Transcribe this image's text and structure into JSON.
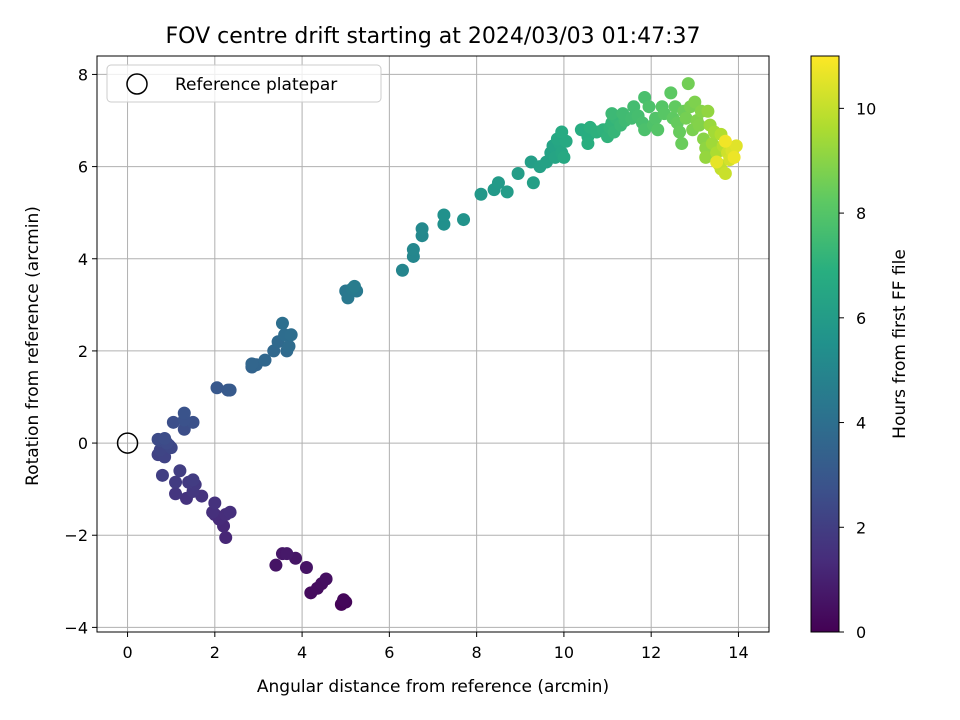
{
  "chart_data": {
    "type": "scatter",
    "title": "FOV centre drift starting at 2024/03/03 01:47:37",
    "xlabel": "Angular distance from reference (arcmin)",
    "ylabel": "Rotation from reference (arcmin)",
    "xlim": [
      -0.7,
      14.7
    ],
    "ylim": [
      -4.1,
      8.4
    ],
    "xticks": [
      0,
      2,
      4,
      6,
      8,
      10,
      12,
      14
    ],
    "yticks": [
      -4,
      -2,
      0,
      2,
      4,
      6,
      8
    ],
    "xtick_labels": [
      "0",
      "2",
      "4",
      "6",
      "8",
      "10",
      "12",
      "14"
    ],
    "ytick_labels": [
      "−4",
      "−2",
      "0",
      "2",
      "4",
      "6",
      "8"
    ],
    "grid": true,
    "legend": {
      "placement": "top-left",
      "entries": [
        "Reference platepar"
      ]
    },
    "reference_point": {
      "x": 0,
      "y": 0
    },
    "colorbar": {
      "label": "Hours from first FF file",
      "min": 0,
      "max": 11,
      "ticks": [
        0,
        2,
        4,
        6,
        8,
        10
      ],
      "tick_labels": [
        "0",
        "2",
        "4",
        "6",
        "8",
        "10"
      ],
      "colormap": "viridis"
    },
    "points": [
      [
        4.9,
        -3.5,
        0.1
      ],
      [
        5.0,
        -3.45,
        0.15
      ],
      [
        4.95,
        -3.4,
        0.2
      ],
      [
        4.2,
        -3.25,
        0.3
      ],
      [
        4.35,
        -3.15,
        0.35
      ],
      [
        4.45,
        -3.05,
        0.4
      ],
      [
        4.55,
        -2.95,
        0.45
      ],
      [
        4.1,
        -2.7,
        0.55
      ],
      [
        3.4,
        -2.65,
        0.6
      ],
      [
        3.85,
        -2.5,
        0.65
      ],
      [
        3.55,
        -2.4,
        0.7
      ],
      [
        3.65,
        -2.4,
        0.75
      ],
      [
        2.25,
        -2.05,
        1.2
      ],
      [
        2.2,
        -1.8,
        1.25
      ],
      [
        2.1,
        -1.65,
        1.3
      ],
      [
        2.0,
        -1.55,
        1.35
      ],
      [
        2.25,
        -1.55,
        1.4
      ],
      [
        2.35,
        -1.5,
        1.45
      ],
      [
        1.95,
        -1.5,
        1.5
      ],
      [
        2.0,
        -1.3,
        1.55
      ],
      [
        1.35,
        -1.2,
        1.6
      ],
      [
        1.7,
        -1.15,
        1.65
      ],
      [
        1.1,
        -1.1,
        1.7
      ],
      [
        1.5,
        -1.05,
        1.75
      ],
      [
        1.55,
        -0.9,
        1.8
      ],
      [
        1.4,
        -0.85,
        1.85
      ],
      [
        1.1,
        -0.85,
        1.9
      ],
      [
        1.5,
        -0.8,
        1.95
      ],
      [
        1.2,
        -0.6,
        2.0
      ],
      [
        0.8,
        -0.7,
        2.05
      ],
      [
        0.7,
        -0.25,
        2.15
      ],
      [
        0.85,
        -0.3,
        2.2
      ],
      [
        0.75,
        -0.15,
        2.25
      ],
      [
        0.95,
        -0.05,
        2.3
      ],
      [
        1.0,
        -0.1,
        2.35
      ],
      [
        0.75,
        0.05,
        2.4
      ],
      [
        0.9,
        0.0,
        2.45
      ],
      [
        0.7,
        0.08,
        2.5
      ],
      [
        0.85,
        0.1,
        2.55
      ],
      [
        1.3,
        0.3,
        2.6
      ],
      [
        1.05,
        0.45,
        2.65
      ],
      [
        1.5,
        0.45,
        2.7
      ],
      [
        1.3,
        0.5,
        2.75
      ],
      [
        1.3,
        0.65,
        2.8
      ],
      [
        2.05,
        1.2,
        3.0
      ],
      [
        2.3,
        1.15,
        3.05
      ],
      [
        2.35,
        1.15,
        3.1
      ],
      [
        2.85,
        1.65,
        3.5
      ],
      [
        2.95,
        1.7,
        3.55
      ],
      [
        2.85,
        1.72,
        3.6
      ],
      [
        3.15,
        1.8,
        3.65
      ],
      [
        3.35,
        2.0,
        3.7
      ],
      [
        3.45,
        2.2,
        3.75
      ],
      [
        3.65,
        2.0,
        3.8
      ],
      [
        3.7,
        2.1,
        3.85
      ],
      [
        3.6,
        2.35,
        3.9
      ],
      [
        3.75,
        2.35,
        3.95
      ],
      [
        3.55,
        2.6,
        4.0
      ],
      [
        5.0,
        3.3,
        4.35
      ],
      [
        5.05,
        3.15,
        4.4
      ],
      [
        5.25,
        3.3,
        4.45
      ],
      [
        5.15,
        3.35,
        4.5
      ],
      [
        5.2,
        3.4,
        4.55
      ],
      [
        6.3,
        3.75,
        4.95
      ],
      [
        6.55,
        4.05,
        5.0
      ],
      [
        6.55,
        4.2,
        5.05
      ],
      [
        6.75,
        4.5,
        5.1
      ],
      [
        6.75,
        4.65,
        5.15
      ],
      [
        7.25,
        4.75,
        5.45
      ],
      [
        7.25,
        4.95,
        5.5
      ],
      [
        7.7,
        4.85,
        5.6
      ],
      [
        8.1,
        5.4,
        5.85
      ],
      [
        8.4,
        5.5,
        5.9
      ],
      [
        8.5,
        5.65,
        5.95
      ],
      [
        8.7,
        5.45,
        6.0
      ],
      [
        8.95,
        5.85,
        6.05
      ],
      [
        9.25,
        6.1,
        6.1
      ],
      [
        9.3,
        5.65,
        6.15
      ],
      [
        9.45,
        6.0,
        6.2
      ],
      [
        9.6,
        6.1,
        6.25
      ],
      [
        9.7,
        6.3,
        6.3
      ],
      [
        9.75,
        6.45,
        6.35
      ],
      [
        9.8,
        6.2,
        6.4
      ],
      [
        9.9,
        6.5,
        6.45
      ],
      [
        9.95,
        6.3,
        6.5
      ],
      [
        9.85,
        6.6,
        6.55
      ],
      [
        10.0,
        6.2,
        6.6
      ],
      [
        10.05,
        6.55,
        6.65
      ],
      [
        9.95,
        6.75,
        6.7
      ],
      [
        10.4,
        6.8,
        6.8
      ],
      [
        10.55,
        6.65,
        6.85
      ],
      [
        10.55,
        6.5,
        6.9
      ],
      [
        10.6,
        6.85,
        6.95
      ],
      [
        10.75,
        6.75,
        7.0
      ],
      [
        10.9,
        6.8,
        7.05
      ],
      [
        11.0,
        6.65,
        7.1
      ],
      [
        11.05,
        6.85,
        7.15
      ],
      [
        11.1,
        6.95,
        7.2
      ],
      [
        11.15,
        6.75,
        7.25
      ],
      [
        11.2,
        7.05,
        7.3
      ],
      [
        11.3,
        6.9,
        7.35
      ],
      [
        11.1,
        7.15,
        7.4
      ],
      [
        11.4,
        7.0,
        7.45
      ],
      [
        11.35,
        7.15,
        7.5
      ],
      [
        11.55,
        7.05,
        7.55
      ],
      [
        11.6,
        7.3,
        7.6
      ],
      [
        11.7,
        7.1,
        7.65
      ],
      [
        11.8,
        6.95,
        7.7
      ],
      [
        11.85,
        7.5,
        7.75
      ],
      [
        11.85,
        6.8,
        7.8
      ],
      [
        11.95,
        7.3,
        7.85
      ],
      [
        12.05,
        6.9,
        7.9
      ],
      [
        12.1,
        7.05,
        7.95
      ],
      [
        12.15,
        6.8,
        8.0
      ],
      [
        12.25,
        7.3,
        8.05
      ],
      [
        12.3,
        7.15,
        8.1
      ],
      [
        12.45,
        7.6,
        8.2
      ],
      [
        12.5,
        7.05,
        8.25
      ],
      [
        12.55,
        7.3,
        8.3
      ],
      [
        12.6,
        6.95,
        8.35
      ],
      [
        12.65,
        6.75,
        8.4
      ],
      [
        12.7,
        6.5,
        8.45
      ],
      [
        12.75,
        7.2,
        8.5
      ],
      [
        12.85,
        7.8,
        8.6
      ],
      [
        12.8,
        7.05,
        8.65
      ],
      [
        12.9,
        7.3,
        8.7
      ],
      [
        12.95,
        6.8,
        8.75
      ],
      [
        13.0,
        7.4,
        8.8
      ],
      [
        13.05,
        7.0,
        8.85
      ],
      [
        13.1,
        6.9,
        8.9
      ],
      [
        13.15,
        7.2,
        8.95
      ],
      [
        13.2,
        6.6,
        9.0
      ],
      [
        13.25,
        6.4,
        9.1
      ],
      [
        13.3,
        7.2,
        9.15
      ],
      [
        13.25,
        6.2,
        9.2
      ],
      [
        13.35,
        6.9,
        9.3
      ],
      [
        13.4,
        6.5,
        9.4
      ],
      [
        13.45,
        6.75,
        9.45
      ],
      [
        13.5,
        6.3,
        9.6
      ],
      [
        13.6,
        6.7,
        9.7
      ],
      [
        13.65,
        6.45,
        9.8
      ],
      [
        13.55,
        6.05,
        9.9
      ],
      [
        13.6,
        5.95,
        10.0
      ],
      [
        13.7,
        5.85,
        10.1
      ],
      [
        13.75,
        6.3,
        10.2
      ],
      [
        13.8,
        6.15,
        10.3
      ],
      [
        13.85,
        6.35,
        10.4
      ],
      [
        13.95,
        6.45,
        10.5
      ],
      [
        13.5,
        6.1,
        10.6
      ],
      [
        13.9,
        6.2,
        10.7
      ],
      [
        13.7,
        6.55,
        10.8
      ]
    ]
  }
}
